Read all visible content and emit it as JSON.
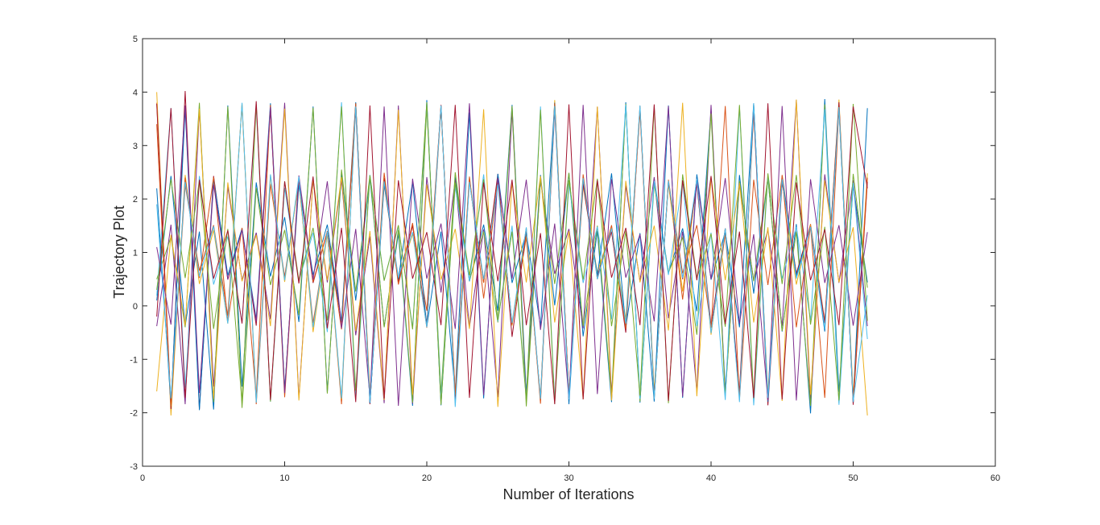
{
  "chart_data": {
    "type": "line",
    "title": "",
    "xlabel": "Number of Iterations",
    "ylabel": "Trajectory Plot",
    "xlim": [
      0,
      60
    ],
    "ylim": [
      -3,
      5
    ],
    "xticks": [
      "0",
      "10",
      "20",
      "30",
      "40",
      "50",
      "60"
    ],
    "yticks": [
      "-3",
      "-2",
      "-1",
      "0",
      "1",
      "2",
      "3",
      "4",
      "5"
    ],
    "grid": false,
    "legend": "none",
    "x": [
      1,
      2,
      3,
      4,
      5,
      6,
      7,
      8,
      9,
      10,
      11,
      12,
      13,
      14,
      15,
      16,
      17,
      18,
      19,
      20,
      21,
      22,
      23,
      24,
      25,
      26,
      27,
      28,
      29,
      30,
      31,
      32,
      33,
      34,
      35,
      36,
      37,
      38,
      39,
      40,
      41,
      42,
      43,
      44,
      45,
      46,
      47,
      48,
      49,
      50,
      51
    ],
    "series": [
      {
        "color": "#0072BD",
        "values": [
          0.1,
          2.43,
          -0.38,
          1.39,
          -1.94,
          3.75,
          -1.51,
          2.31,
          0.55,
          1.66,
          -0.3,
          3.73,
          -1.62,
          2.5,
          0.1,
          2.4,
          -0.39,
          1.35,
          -1.87,
          3.85,
          -1.86,
          2.41,
          0.46,
          1.52,
          -0.09,
          3.76,
          -1.65,
          2.45,
          0.01,
          2.49,
          -0.57,
          1.4,
          -1.8,
          3.81,
          -1.81,
          2.38,
          0.62,
          1.45,
          -0.1,
          3.66,
          -1.58,
          2.45,
          0.23,
          2.4,
          -0.48,
          1.53,
          -2.01,
          3.87,
          -1.61,
          2.25,
          0.44
        ]
      },
      {
        "color": "#D95319",
        "values": [
          3.8,
          -1.85,
          2.26,
          0.66,
          1.51,
          -0.18,
          3.77,
          -1.84,
          2.28,
          0.55,
          2.32,
          -0.32,
          1.37,
          -1.84,
          3.79,
          -1.83,
          2.26,
          0.5,
          1.52,
          -0.09,
          3.74,
          -1.67,
          2.42,
          0.14,
          2.31,
          -0.34,
          1.28,
          -1.72,
          3.8,
          -1.65,
          2.37,
          0.54,
          1.39,
          -0.4,
          3.74,
          -1.7,
          2.34,
          0.12,
          2.41,
          -0.51,
          1.34,
          -1.71,
          3.78,
          -1.71,
          2.45,
          0.6,
          1.53,
          -0.29,
          3.78,
          -1.81,
          2.38
        ]
      },
      {
        "color": "#EDB120",
        "values": [
          4.0,
          -2.05,
          2.45,
          0.41,
          1.42,
          -0.33,
          3.79,
          -1.78,
          2.44,
          0.45,
          2.38,
          -0.49,
          1.34,
          -1.75,
          3.78,
          -1.65,
          2.39,
          0.47,
          1.35,
          -0.37,
          3.75,
          -1.71,
          2.35,
          0.43,
          2.4,
          -0.37,
          1.34,
          -1.74,
          3.85,
          -1.68,
          2.24,
          0.62,
          1.46,
          -0.25,
          3.7,
          -1.59,
          2.28,
          0.27,
          2.33,
          -0.54,
          1.45,
          -1.72,
          3.65,
          -1.63,
          2.34,
          0.4,
          1.51,
          -0.33,
          3.86,
          -1.68,
          2.48
        ]
      },
      {
        "color": "#7E2F8E",
        "values": [
          -0.38,
          1.52,
          -1.84,
          3.69,
          -1.51,
          2.23,
          0.48,
          1.37,
          -0.25,
          3.8,
          -1.73,
          2.35,
          0.44,
          2.35,
          -0.55,
          1.3,
          -1.82,
          3.75,
          -1.83,
          2.41,
          0.25,
          2.36,
          -0.4,
          1.43,
          -1.71,
          3.66,
          -1.77,
          2.35,
          0.6,
          1.44,
          -0.42,
          3.72,
          -1.64,
          2.25,
          0.46,
          2.41,
          -0.23,
          1.39,
          -1.6,
          3.76,
          -1.65,
          2.3,
          0.48,
          1.42,
          -0.37,
          3.85,
          -1.84,
          2.46,
          0.43,
          2.35,
          -0.38
        ]
      },
      {
        "color": "#77AC30",
        "values": [
          0.5,
          1.29,
          -0.4,
          3.8,
          -1.8,
          3.73,
          -1.91,
          2.21,
          0.39,
          1.42,
          -0.17,
          3.71,
          -1.64,
          2.55,
          0.27,
          2.45,
          -0.4,
          1.42,
          -1.81,
          3.72,
          -1.64,
          2.5,
          0.48,
          1.39,
          -0.31,
          3.74,
          -1.88,
          2.36,
          0.41,
          2.49,
          -0.38,
          1.5,
          -1.7,
          3.78,
          -1.79,
          2.28,
          0.62,
          1.28,
          -0.54,
          3.6,
          -1.68,
          2.34,
          0.46,
          2.4,
          -0.47,
          1.39,
          -1.87,
          3.77,
          -1.81,
          2.47,
          0.34
        ]
      },
      {
        "color": "#4DBEEE",
        "values": [
          0.19,
          3.7,
          -1.53,
          2.43,
          0.4,
          1.3,
          -0.31,
          3.73,
          -1.79,
          2.21,
          0.47,
          1.37,
          -0.49,
          3.81,
          -1.75,
          2.45,
          0.48,
          1.49,
          -0.41,
          3.79,
          -1.75,
          2.24,
          0.47,
          2.46,
          -0.29,
          1.5,
          -1.73,
          3.73,
          -1.76,
          2.28,
          0.43,
          1.48,
          -0.25,
          3.76,
          -1.74,
          2.34,
          0.58,
          2.34,
          -0.38,
          1.37,
          -1.76,
          3.73,
          -1.86,
          2.44,
          0.51,
          1.48,
          -0.27,
          3.68,
          -1.85,
          2.3,
          -0.62
        ]
      },
      {
        "color": "#A2142F",
        "values": [
          3.78,
          -1.93,
          4.02,
          -1.93,
          2.43,
          0.5,
          1.44,
          -0.37,
          3.67,
          -1.59,
          2.37,
          0.43,
          1.39,
          -0.31,
          3.67,
          -1.84,
          2.39,
          0.45,
          1.5,
          -0.33,
          3.76,
          -1.81,
          2.34,
          0.44,
          2.47,
          -0.58,
          1.4,
          -1.76,
          3.67,
          -1.66,
          2.28,
          0.55,
          1.39,
          -0.5,
          3.7,
          -1.7,
          2.32,
          0.5,
          2.28,
          -0.38,
          1.45,
          -1.62,
          3.66,
          -1.86,
          2.32,
          0.6,
          1.49,
          -0.32,
          3.81,
          -1.85,
          2.32
        ]
      },
      {
        "color": "#0072BD",
        "values": [
          2.2,
          -1.87,
          3.7,
          -1.95,
          2.39,
          0.57,
          1.45,
          -0.25,
          3.79,
          -1.57,
          2.26,
          0.58,
          1.52,
          -0.29,
          3.81,
          -1.82,
          2.29,
          0.5,
          2.32,
          -0.39,
          1.39,
          -1.64,
          3.62,
          -1.73,
          2.47,
          0.43,
          1.37,
          -0.38,
          3.8,
          -1.84,
          2.4,
          0.57,
          2.48,
          -0.4,
          1.36,
          -1.79,
          3.75,
          -1.72,
          2.46,
          0.49,
          1.38,
          -0.4,
          3.79,
          -1.79,
          2.41,
          0.56,
          1.47,
          -0.48,
          3.69,
          -1.8,
          3.7
        ]
      },
      {
        "color": "#D95319",
        "values": [
          3.4,
          -1.88,
          2.4,
          0.52,
          2.41,
          -0.3,
          1.46,
          -1.71,
          3.76,
          -1.71,
          2.41,
          0.45,
          1.4,
          -0.44,
          3.79,
          -1.7,
          2.49,
          0.4,
          1.55,
          -0.41,
          3.7,
          -1.66,
          2.39,
          0.44,
          2.34,
          -0.35,
          1.46,
          -1.83,
          3.79,
          -1.66,
          2.46,
          0.5,
          1.51,
          -0.43,
          3.65,
          -1.73,
          2.36,
          0.61,
          1.51,
          -0.41,
          3.74,
          -1.76,
          2.36,
          0.39,
          2.43,
          -0.4,
          1.49,
          -1.72,
          3.72,
          -1.75,
          2.4
        ]
      },
      {
        "color": "#EDB120",
        "values": [
          -1.6,
          1.33,
          -0.37,
          3.69,
          -1.74,
          2.31,
          0.46,
          1.33,
          -0.38,
          3.69,
          -1.77,
          2.38,
          0.48,
          2.41,
          -0.47,
          1.4,
          -1.76,
          3.67,
          -1.66,
          2.27,
          0.49,
          1.44,
          -0.43,
          3.68,
          -1.89,
          2.32,
          0.44,
          2.43,
          -0.31,
          1.4,
          -1.75,
          3.73,
          -1.77,
          2.34,
          0.44,
          1.5,
          -0.46,
          3.8,
          -1.69,
          2.41,
          0.48,
          2.3,
          -0.31,
          1.47,
          -1.78,
          3.86,
          -1.66,
          2.35,
          0.44,
          1.47,
          -2.05
        ]
      },
      {
        "color": "#7E2F8E",
        "values": [
          1.1,
          -0.35,
          3.75,
          -1.63,
          2.27,
          0.49,
          1.42,
          -0.29,
          3.72,
          -1.63,
          2.44,
          0.49,
          2.33,
          -0.42,
          1.44,
          -1.72,
          3.73,
          -1.87,
          2.38,
          0.51,
          1.54,
          -0.43,
          3.79,
          -1.67,
          2.39,
          0.51,
          2.36,
          -0.45,
          1.54,
          -1.75,
          3.76,
          -1.65,
          2.37,
          0.53,
          1.34,
          -0.29,
          3.74,
          -1.7,
          2.38,
          0.5,
          2.39,
          -0.33,
          1.34,
          -1.77,
          3.74,
          -1.77,
          2.37,
          0.43,
          1.51,
          -0.37,
          1.38
        ]
      },
      {
        "color": "#77AC30",
        "values": [
          0.3,
          2.37,
          0.52,
          2.35,
          -0.43,
          1.44,
          -1.8,
          3.78,
          -1.79,
          2.33,
          0.48,
          1.46,
          -0.27,
          3.73,
          -1.59,
          2.44,
          0.47,
          1.51,
          -0.44,
          3.81,
          -1.85,
          2.31,
          0.57,
          2.37,
          -0.27,
          1.39,
          -1.75,
          3.67,
          -1.83,
          2.35,
          0.49,
          2.38,
          -0.38,
          1.4,
          -1.68,
          3.74,
          -1.82,
          2.46,
          0.52,
          1.35,
          -0.39,
          3.76,
          -1.73,
          2.48,
          0.41,
          2.45,
          -0.35,
          1.48,
          -1.77,
          3.78,
          -0.28
        ]
      },
      {
        "color": "#4DBEEE",
        "values": [
          1.9,
          -1.73,
          2.32,
          0.55,
          1.49,
          -0.33,
          3.8,
          -1.81,
          2.46,
          0.48,
          2.42,
          -0.4,
          1.39,
          -1.73,
          3.73,
          -1.8,
          2.33,
          0.53,
          1.38,
          -0.4,
          3.75,
          -1.89,
          2.32,
          0.5,
          2.27,
          -0.32,
          1.47,
          -1.74,
          3.74,
          -1.75,
          2.39,
          0.5,
          1.45,
          -0.33,
          3.75,
          -1.74,
          2.34,
          0.52,
          2.38,
          -0.51,
          1.45,
          -1.8,
          3.79,
          -1.72,
          2.37,
          0.51,
          1.48,
          -0.43,
          3.72,
          -1.79,
          0.2
        ]
      },
      {
        "color": "#A2142F",
        "values": [
          -0.2,
          3.7,
          -1.72,
          2.36,
          0.51,
          1.41,
          -0.33,
          3.83,
          -1.76,
          2.33,
          0.42,
          2.42,
          -0.42,
          1.46,
          -1.8,
          3.75,
          -1.73,
          2.35,
          0.51,
          1.38,
          -0.36,
          3.76,
          -1.72,
          2.31,
          0.46,
          2.36,
          -0.36,
          1.36,
          -1.84,
          3.77,
          -1.75,
          2.35,
          0.53,
          1.46,
          -0.36,
          3.77,
          -1.78,
          2.35,
          0.48,
          2.43,
          -0.34,
          1.39,
          -1.72,
          3.79,
          -1.75,
          2.31,
          0.48,
          1.43,
          -0.36,
          3.73,
          2.2
        ]
      }
    ]
  }
}
